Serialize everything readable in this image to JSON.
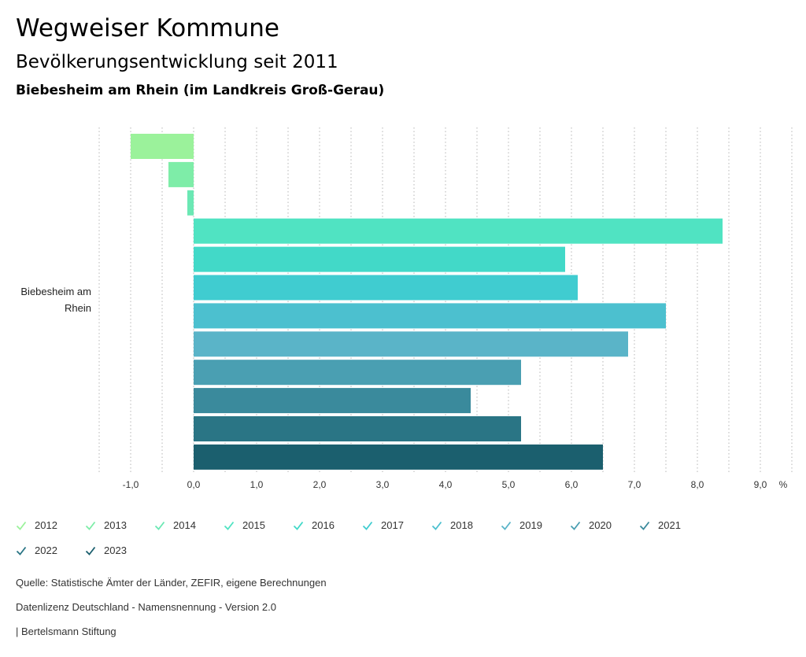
{
  "header": {
    "title": "Wegweiser Kommune",
    "subtitle": "Bevölkerungsentwicklung seit 2011",
    "region": "Biebesheim am Rhein (im Landkreis Groß-Gerau)"
  },
  "chart_data": {
    "type": "bar",
    "orientation": "horizontal",
    "category": "Biebesheim am Rhein",
    "category_lines": [
      "Biebesheim am",
      "Rhein"
    ],
    "unit": "%",
    "xlim": [
      -1.5,
      9.5
    ],
    "ticks": [
      -1.0,
      0.0,
      1.0,
      2.0,
      3.0,
      4.0,
      5.0,
      6.0,
      7.0,
      8.0,
      9.0
    ],
    "tick_labels": [
      "-1,0",
      "0,0",
      "1,0",
      "2,0",
      "3,0",
      "4,0",
      "5,0",
      "6,0",
      "7,0",
      "8,0",
      "9,0"
    ],
    "series": [
      {
        "name": "2012",
        "value": -1.0,
        "color": "#9bf29b"
      },
      {
        "name": "2013",
        "value": -0.4,
        "color": "#7eeda8"
      },
      {
        "name": "2014",
        "value": -0.1,
        "color": "#6be8b4"
      },
      {
        "name": "2015",
        "value": 8.4,
        "color": "#50e3c2"
      },
      {
        "name": "2016",
        "value": 5.9,
        "color": "#42d9c8"
      },
      {
        "name": "2017",
        "value": 6.1,
        "color": "#40ccd0"
      },
      {
        "name": "2018",
        "value": 7.5,
        "color": "#4cc0cf"
      },
      {
        "name": "2019",
        "value": 6.9,
        "color": "#5ab4c8"
      },
      {
        "name": "2020",
        "value": 5.2,
        "color": "#4a9fb2"
      },
      {
        "name": "2021",
        "value": 4.4,
        "color": "#3a8a9c"
      },
      {
        "name": "2022",
        "value": 5.2,
        "color": "#2a7585"
      },
      {
        "name": "2023",
        "value": 6.5,
        "color": "#1b5f6e"
      }
    ]
  },
  "footer": {
    "source": "Quelle: Statistische Ämter der Länder, ZEFIR, eigene Berechnungen",
    "license": "Datenlizenz Deutschland - Namensnennung - Version 2.0",
    "publisher": "| Bertelsmann Stiftung"
  }
}
